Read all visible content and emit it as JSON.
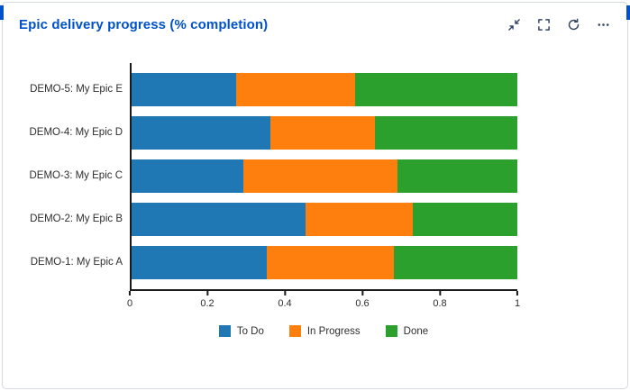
{
  "header": {
    "title": "Epic delivery progress (% completion)",
    "icons": {
      "collapse": "collapse-icon",
      "fullscreen": "fullscreen-icon",
      "refresh": "refresh-icon",
      "more": "more-options-icon"
    }
  },
  "chart_data": {
    "type": "bar",
    "orientation": "horizontal",
    "stacked": true,
    "title": "Epic delivery progress (% completion)",
    "categories": [
      "DEMO-5: My Epic E",
      "DEMO-4: My Epic D",
      "DEMO-3: My Epic C",
      "DEMO-2: My Epic B",
      "DEMO-1: My Epic A"
    ],
    "series": [
      {
        "name": "To Do",
        "color": "#1f77b4",
        "values": [
          0.27,
          0.36,
          0.29,
          0.45,
          0.35
        ]
      },
      {
        "name": "In Progress",
        "color": "#ff7f0e",
        "values": [
          0.31,
          0.27,
          0.4,
          0.28,
          0.33
        ]
      },
      {
        "name": "Done",
        "color": "#2ca02c",
        "values": [
          0.42,
          0.37,
          0.31,
          0.27,
          0.32
        ]
      }
    ],
    "xlim": [
      0,
      1
    ],
    "xticks": [
      0,
      0.2,
      0.4,
      0.6,
      0.8,
      1
    ],
    "xtick_labels": [
      "0",
      "0.2",
      "0.4",
      "0.6",
      "0.8",
      "1"
    ],
    "legend_position": "bottom",
    "grid": false
  }
}
